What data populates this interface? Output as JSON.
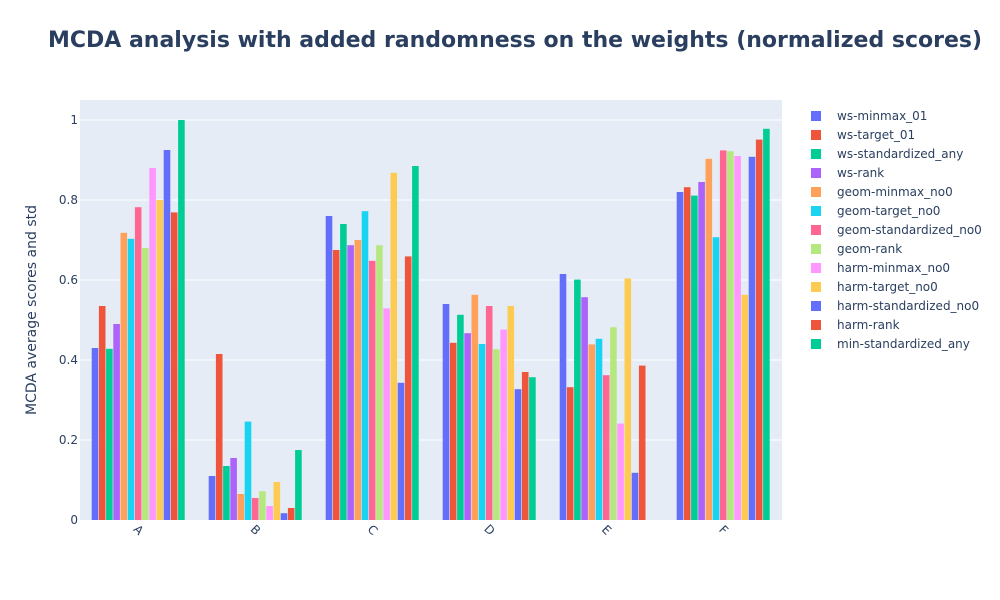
{
  "chart_data": {
    "type": "bar",
    "title": "MCDA analysis with added randomness on the weights (normalized scores)",
    "xlabel": "",
    "ylabel": "MCDA average scores and std",
    "ylim": [
      0,
      1.05
    ],
    "yticks": [
      "0",
      "0.2",
      "0.4",
      "0.6",
      "0.8",
      "1"
    ],
    "grid": true,
    "legend_position": "right",
    "categories": [
      "A",
      "B",
      "C",
      "D",
      "E",
      "F"
    ],
    "series": [
      {
        "name": "ws-minmax_01",
        "color": "#636efa",
        "values": [
          0.43,
          0.11,
          0.76,
          0.54,
          0.615,
          0.82
        ]
      },
      {
        "name": "ws-target_01",
        "color": "#ef553b",
        "values": [
          0.535,
          0.415,
          0.675,
          0.443,
          0.332,
          0.832
        ]
      },
      {
        "name": "ws-standardized_any",
        "color": "#00cc96",
        "values": [
          0.428,
          0.135,
          0.74,
          0.513,
          0.601,
          0.811
        ]
      },
      {
        "name": "ws-rank",
        "color": "#ab63fa",
        "values": [
          0.49,
          0.155,
          0.687,
          0.467,
          0.557,
          0.845
        ]
      },
      {
        "name": "geom-minmax_no0",
        "color": "#ffa15a",
        "values": [
          0.718,
          0.065,
          0.7,
          0.563,
          0.439,
          0.903
        ]
      },
      {
        "name": "geom-target_no0",
        "color": "#19d3f3",
        "values": [
          0.703,
          0.246,
          0.772,
          0.44,
          0.453,
          0.707
        ]
      },
      {
        "name": "geom-standardized_no0",
        "color": "#ff6692",
        "values": [
          0.782,
          0.055,
          0.648,
          0.535,
          0.362,
          0.924
        ]
      },
      {
        "name": "geom-rank",
        "color": "#b6e880",
        "values": [
          0.68,
          0.072,
          0.687,
          0.427,
          0.482,
          0.922
        ]
      },
      {
        "name": "harm-minmax_no0",
        "color": "#ff97ff",
        "values": [
          0.88,
          0.035,
          0.529,
          0.476,
          0.241,
          0.91
        ]
      },
      {
        "name": "harm-target_no0",
        "color": "#fecb52",
        "values": [
          0.8,
          0.095,
          0.868,
          0.535,
          0.604,
          0.563
        ]
      },
      {
        "name": "harm-standardized_no0",
        "color": "#636efa",
        "values": [
          0.925,
          0.017,
          0.343,
          0.327,
          0.118,
          0.908
        ]
      },
      {
        "name": "harm-rank",
        "color": "#ef553b",
        "values": [
          0.769,
          0.03,
          0.659,
          0.37,
          0.386,
          0.951
        ]
      },
      {
        "name": "min-standardized_any",
        "color": "#00cc96",
        "values": [
          1.0,
          0.175,
          0.885,
          0.357,
          0.0,
          0.978
        ]
      }
    ]
  }
}
